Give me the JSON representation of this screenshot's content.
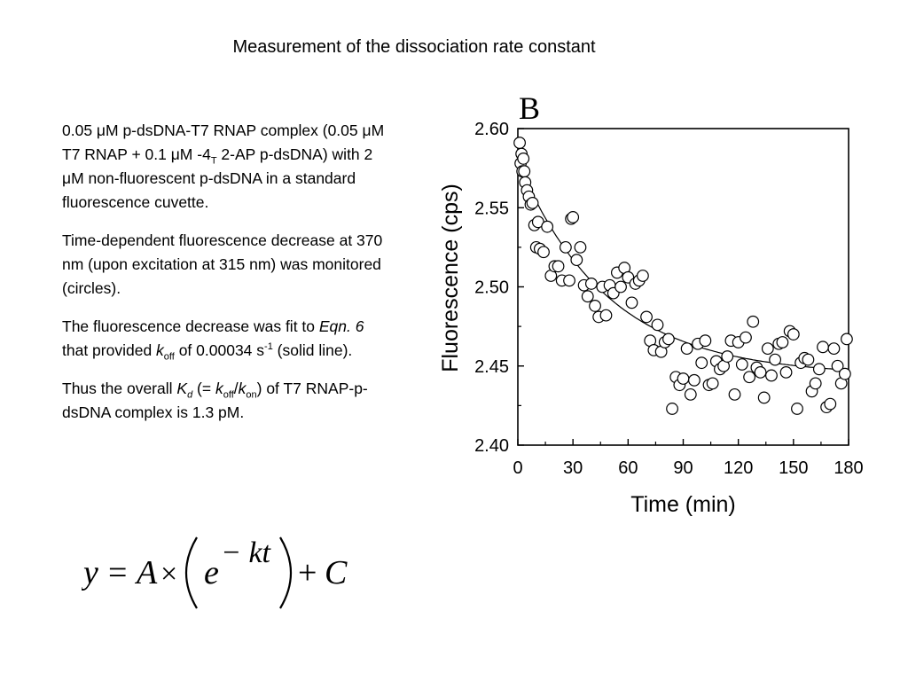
{
  "slide": {
    "title": "Measurement of the dissociation rate constant"
  },
  "description": {
    "para1": "0.05 μM p-dsDNA-T7 RNAP complex (0.05 μM T7 RNAP + 0.1 μM -4T 2-AP p-dsDNA) with 2 μM non-fluorescent p-dsDNA in a standard fluorescence cuvette.",
    "para1_parts": {
      "a": "0.05 μM p-dsDNA-T7 RNAP complex (0.05 μM T7 RNAP + 0.1 μM -4",
      "sub": "T",
      "b": " 2-AP p-dsDNA) with 2 μM non-fluorescent p-dsDNA in a standard fluorescence cuvette."
    },
    "para2": "Time-dependent fluorescence decrease at 370 nm (upon excitation at 315 nm) was monitored (circles).",
    "para3_parts": {
      "a": "The fluorescence decrease was fit to ",
      "eqn": "Eqn. 6",
      "b": " that provided ",
      "k": "k",
      "k_sub": "off",
      "c": " of 0.00034 s",
      "sup": "-1",
      "d": " (solid line)."
    },
    "para4_parts": {
      "a": "Thus the overall ",
      "K": "K",
      "K_sub": "d",
      "b": " (= ",
      "k1": "k",
      "k1_sub": "off",
      "slash": "/",
      "k2": "k",
      "k2_sub": "on",
      "c": ") of T7 RNAP-p-dsDNA complex is 1.3 pM."
    }
  },
  "formula": {
    "y": "y",
    "eq": "=",
    "A": "A",
    "times": "×",
    "e": "e",
    "exponent": "− kt",
    "plus": "+",
    "C": "C"
  },
  "chart_data": {
    "type": "scatter",
    "panel_label": "B",
    "xlabel": "Time (min)",
    "ylabel": "Fluorescence (cps)",
    "xlim": [
      0,
      180
    ],
    "ylim": [
      2.4,
      2.6
    ],
    "xticks": [
      0,
      30,
      60,
      90,
      120,
      150,
      180
    ],
    "yticks": [
      "2.40",
      "2.45",
      "2.50",
      "2.55",
      "2.60"
    ],
    "grid": false,
    "series": [
      {
        "marker": "open-circle",
        "x": [
          1,
          1.5,
          2,
          2.5,
          3,
          3.5,
          4,
          5,
          6,
          7,
          8,
          9,
          10,
          11,
          12,
          14,
          16,
          18,
          20,
          22,
          24,
          26,
          28,
          29,
          30,
          32,
          34,
          36,
          38,
          40,
          42,
          44,
          46,
          48,
          50,
          52,
          54,
          56,
          58,
          60,
          62,
          64,
          66,
          68,
          70,
          72,
          74,
          76,
          78,
          80,
          82,
          84,
          86,
          88,
          90,
          92,
          94,
          96,
          98,
          100,
          102,
          104,
          106,
          108,
          110,
          112,
          114,
          116,
          118,
          120,
          122,
          124,
          126,
          128,
          130,
          132,
          134,
          136,
          138,
          140,
          142,
          144,
          146,
          148,
          150,
          152,
          154,
          156,
          158,
          160,
          162,
          164,
          166,
          168,
          170,
          172,
          174,
          176,
          178,
          179
        ],
        "y": [
          2.591,
          2.578,
          2.584,
          2.573,
          2.581,
          2.573,
          2.566,
          2.561,
          2.557,
          2.552,
          2.553,
          2.539,
          2.525,
          2.541,
          2.524,
          2.522,
          2.538,
          2.507,
          2.513,
          2.513,
          2.504,
          2.525,
          2.504,
          2.543,
          2.544,
          2.517,
          2.525,
          2.501,
          2.494,
          2.502,
          2.488,
          2.481,
          2.5,
          2.482,
          2.501,
          2.496,
          2.509,
          2.5,
          2.512,
          2.506,
          2.49,
          2.502,
          2.504,
          2.507,
          2.481,
          2.466,
          2.46,
          2.476,
          2.459,
          2.465,
          2.467,
          2.423,
          2.443,
          2.438,
          2.442,
          2.461,
          2.432,
          2.441,
          2.464,
          2.452,
          2.466,
          2.438,
          2.439,
          2.453,
          2.448,
          2.45,
          2.456,
          2.466,
          2.432,
          2.465,
          2.451,
          2.468,
          2.443,
          2.478,
          2.449,
          2.446,
          2.43,
          2.461,
          2.444,
          2.454,
          2.464,
          2.465,
          2.446,
          2.472,
          2.47,
          2.423,
          2.452,
          2.455,
          2.454,
          2.434,
          2.439,
          2.448,
          2.462,
          2.424,
          2.426,
          2.461,
          2.45,
          2.439,
          2.445,
          2.467
        ]
      }
    ],
    "fit_curve": {
      "style": "solid-line",
      "A": 0.135,
      "k": 0.0204,
      "C": 2.444,
      "unit_x": "min"
    }
  }
}
